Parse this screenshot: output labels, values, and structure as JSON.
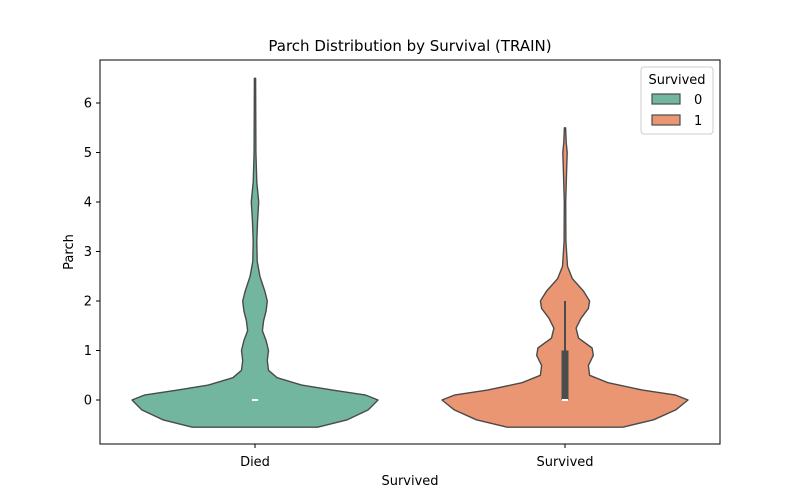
{
  "chart_data": {
    "type": "violin",
    "title": "Parch Distribution by Survival (TRAIN)",
    "xlabel": "Survived",
    "ylabel": "Parch",
    "categories": [
      "Died",
      "Survived"
    ],
    "ylim": [
      -0.55,
      6.8
    ],
    "yticks": [
      0,
      1,
      2,
      3,
      4,
      5,
      6
    ],
    "grid": false,
    "legend": {
      "title": "Survived",
      "placement": "top-right",
      "entries": [
        {
          "label": "0",
          "color": "#72b6a0"
        },
        {
          "label": "1",
          "color": "#ea9673"
        }
      ]
    },
    "series": [
      {
        "name": "0",
        "category": "Died",
        "color": "#72b6a0",
        "range": [
          -0.55,
          6.5
        ],
        "quartiles": {
          "q1": 0,
          "median": 0,
          "q3": 0
        },
        "whiskers": [
          0,
          0
        ],
        "density": [
          {
            "y": -0.55,
            "w": 0.51
          },
          {
            "y": -0.4,
            "w": 0.75
          },
          {
            "y": -0.2,
            "w": 0.92
          },
          {
            "y": 0.0,
            "w": 1.0
          },
          {
            "y": 0.1,
            "w": 0.9
          },
          {
            "y": 0.2,
            "w": 0.63
          },
          {
            "y": 0.3,
            "w": 0.38
          },
          {
            "y": 0.45,
            "w": 0.18
          },
          {
            "y": 0.6,
            "w": 0.11
          },
          {
            "y": 0.8,
            "w": 0.1
          },
          {
            "y": 1.0,
            "w": 0.11
          },
          {
            "y": 1.2,
            "w": 0.09
          },
          {
            "y": 1.4,
            "w": 0.06
          },
          {
            "y": 1.6,
            "w": 0.07
          },
          {
            "y": 1.8,
            "w": 0.09
          },
          {
            "y": 2.0,
            "w": 0.1
          },
          {
            "y": 2.2,
            "w": 0.08
          },
          {
            "y": 2.5,
            "w": 0.04
          },
          {
            "y": 2.8,
            "w": 0.018
          },
          {
            "y": 3.2,
            "w": 0.015
          },
          {
            "y": 3.6,
            "w": 0.02
          },
          {
            "y": 4.0,
            "w": 0.03
          },
          {
            "y": 4.4,
            "w": 0.015
          },
          {
            "y": 5.0,
            "w": 0.007
          },
          {
            "y": 6.0,
            "w": 0.006
          },
          {
            "y": 6.5,
            "w": 0.005
          }
        ]
      },
      {
        "name": "1",
        "category": "Survived",
        "color": "#ea9673",
        "range": [
          -0.55,
          5.5
        ],
        "quartiles": {
          "q1": 0,
          "median": 0,
          "q3": 1
        },
        "whiskers": [
          0,
          2
        ],
        "density": [
          {
            "y": -0.55,
            "w": 0.47
          },
          {
            "y": -0.4,
            "w": 0.72
          },
          {
            "y": -0.2,
            "w": 0.9
          },
          {
            "y": 0.0,
            "w": 1.0
          },
          {
            "y": 0.1,
            "w": 0.9
          },
          {
            "y": 0.2,
            "w": 0.63
          },
          {
            "y": 0.35,
            "w": 0.35
          },
          {
            "y": 0.5,
            "w": 0.2
          },
          {
            "y": 0.7,
            "w": 0.19
          },
          {
            "y": 0.9,
            "w": 0.23
          },
          {
            "y": 1.05,
            "w": 0.22
          },
          {
            "y": 1.25,
            "w": 0.11
          },
          {
            "y": 1.45,
            "w": 0.09
          },
          {
            "y": 1.65,
            "w": 0.13
          },
          {
            "y": 1.85,
            "w": 0.19
          },
          {
            "y": 2.0,
            "w": 0.2
          },
          {
            "y": 2.2,
            "w": 0.15
          },
          {
            "y": 2.45,
            "w": 0.06
          },
          {
            "y": 2.7,
            "w": 0.02
          },
          {
            "y": 3.2,
            "w": 0.007
          },
          {
            "y": 4.0,
            "w": 0.006
          },
          {
            "y": 4.7,
            "w": 0.014
          },
          {
            "y": 5.0,
            "w": 0.018
          },
          {
            "y": 5.2,
            "w": 0.01
          },
          {
            "y": 5.5,
            "w": 0.005
          }
        ]
      }
    ]
  }
}
